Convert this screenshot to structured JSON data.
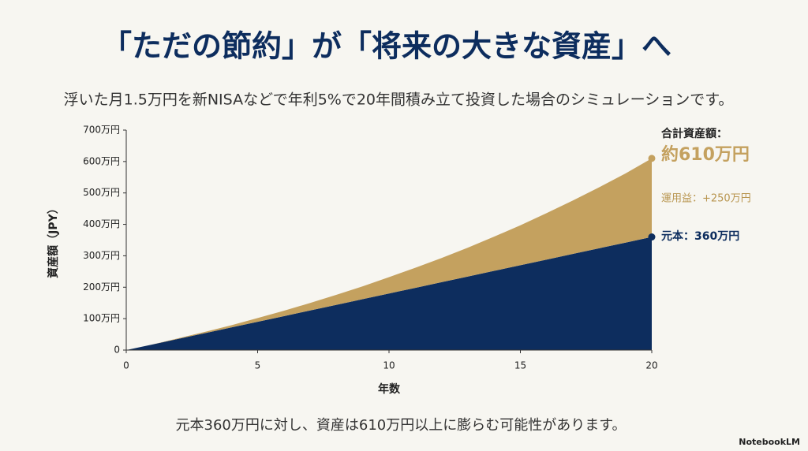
{
  "chart_data": {
    "type": "stacked_area",
    "title": "「ただの節約」が「将来の大きな資産」へ",
    "subtitle": "浮いた月1.5万円を新NISAなどで年利5%で20年間積み立て投資した場合のシミュレーションです。",
    "x_label": "年数",
    "y_label": "資産額（JPY）",
    "x": [
      0,
      1,
      2,
      3,
      4,
      5,
      6,
      7,
      8,
      9,
      10,
      11,
      12,
      13,
      14,
      15,
      16,
      17,
      18,
      19,
      20
    ],
    "series": [
      {
        "name": "元本",
        "color": "#0d2d5e",
        "values": [
          0,
          18,
          36,
          54,
          72,
          90,
          108,
          126,
          144,
          162,
          180,
          198,
          216,
          234,
          252,
          270,
          288,
          306,
          324,
          342,
          360
        ]
      },
      {
        "name": "運用益",
        "color": "#c4a15f",
        "values": [
          0,
          0,
          2,
          4,
          7,
          12,
          17,
          24,
          32,
          41,
          52,
          64,
          77,
          92,
          109,
          127,
          148,
          170,
          194,
          220,
          250
        ]
      }
    ],
    "xlim": [
      0,
      20
    ],
    "xticks": [
      0,
      5,
      10,
      15,
      20
    ],
    "ylim": [
      0,
      700
    ],
    "yticks": [
      0,
      {
        "value": 100,
        "label": "100万円"
      },
      {
        "value": 200,
        "label": "200万円"
      },
      {
        "value": 300,
        "label": "300万円"
      },
      {
        "value": 400,
        "label": "400万円"
      },
      {
        "value": 500,
        "label": "500万円"
      },
      {
        "value": 600,
        "label": "600万円"
      },
      {
        "value": 700,
        "label": "700万円"
      }
    ],
    "annotations": [
      "合計資産額：",
      "約610万円",
      "運用益：+250万円",
      "元本：360万円"
    ],
    "footer": "元本360万円に対し、資産は610万円以上に膨らむ可能性があります。",
    "logo": "NotebookLM"
  }
}
